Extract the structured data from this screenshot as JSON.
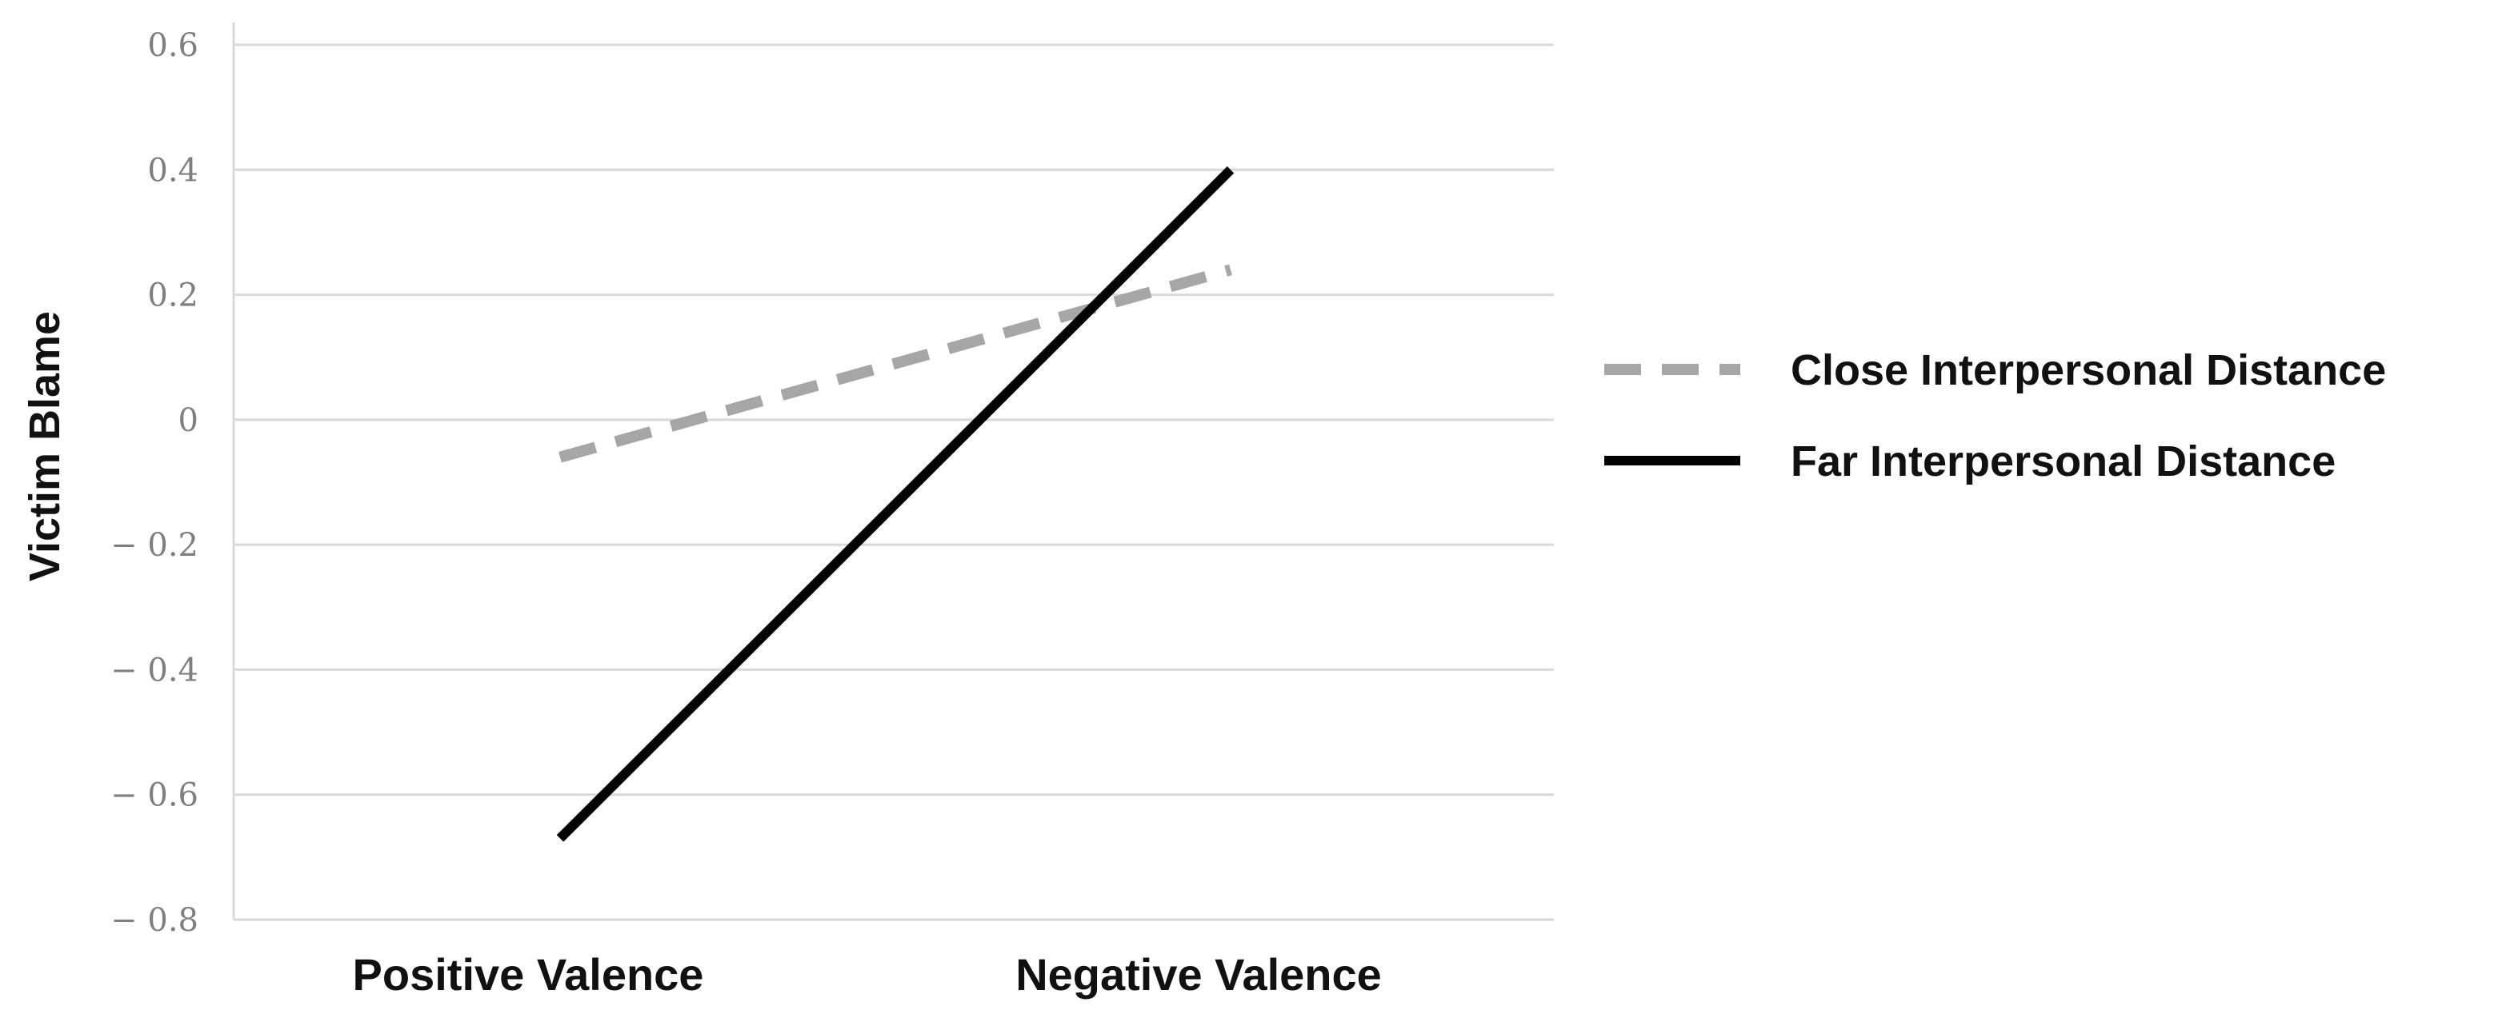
{
  "chart_data": {
    "type": "line",
    "title": "",
    "xlabel": "",
    "ylabel": "Victim Blame",
    "categories": [
      "Positive Valence",
      "Negative Valence"
    ],
    "ylim": [
      -0.8,
      0.6
    ],
    "yticks": [
      0.6,
      0.4,
      0.2,
      0,
      -0.2,
      -0.4,
      -0.6,
      -0.8
    ],
    "ytick_labels": [
      "0.6",
      "0.4",
      "0.2",
      "0",
      "− 0.2",
      "− 0.4",
      "− 0.6",
      "− 0.8"
    ],
    "grid": "horizontal",
    "legend_position": "right",
    "series": [
      {
        "name": "Close Interpersonal Distance",
        "values": [
          -0.06,
          0.24
        ],
        "color": "#a6a6a6",
        "style": "dashed"
      },
      {
        "name": "Far Interpersonal Distance",
        "values": [
          -0.67,
          0.4
        ],
        "color": "#000000",
        "style": "solid"
      }
    ]
  }
}
